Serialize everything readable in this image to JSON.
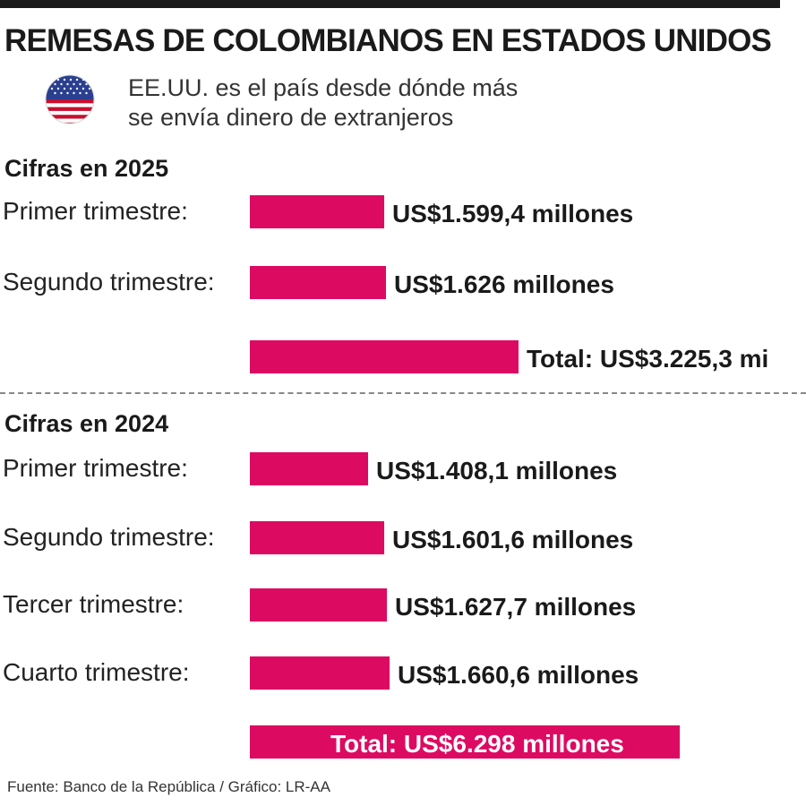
{
  "title": "REMESAS DE COLOMBIANOS EN ESTADOS UNIDOS",
  "subtitle_line1": "EE.UU. es el país desde dónde más",
  "subtitle_line2": "se envía dinero de extranjeros",
  "flag_icon": "us-flag-icon",
  "footer": "Fuente: Banco de la República / Gráfico: LR-AA",
  "colors": {
    "bar": "#dd0a62",
    "text": "#1a1a1a"
  },
  "chart_data": [
    {
      "type": "bar",
      "orientation": "horizontal",
      "title": "Cifras en 2025",
      "unit": "millones de US$",
      "rows": [
        {
          "label": "Primer trimestre:",
          "value": 1599.4,
          "value_label": "US$1.599,4 millones"
        },
        {
          "label": "Segundo trimestre:",
          "value": 1626,
          "value_label": "US$1.626 millones"
        },
        {
          "label": "",
          "value": 3225.3,
          "value_label": "Total: US$3.225,3 mi",
          "is_total": true
        }
      ]
    },
    {
      "type": "bar",
      "orientation": "horizontal",
      "title": "Cifras en 2024",
      "unit": "millones de US$",
      "rows": [
        {
          "label": "Primer trimestre:",
          "value": 1408.1,
          "value_label": "US$1.408,1 millones"
        },
        {
          "label": "Segundo trimestre:",
          "value": 1601.6,
          "value_label": "US$1.601,6 millones"
        },
        {
          "label": "Tercer trimestre:",
          "value": 1627.7,
          "value_label": "US$1.627,7 millones"
        },
        {
          "label": "Cuarto trimestre:",
          "value": 1660.6,
          "value_label": "US$1.660,6 millones"
        },
        {
          "label": "",
          "value": 6298,
          "value_label": "Total: US$6.298 millones",
          "is_total": true
        }
      ]
    }
  ]
}
